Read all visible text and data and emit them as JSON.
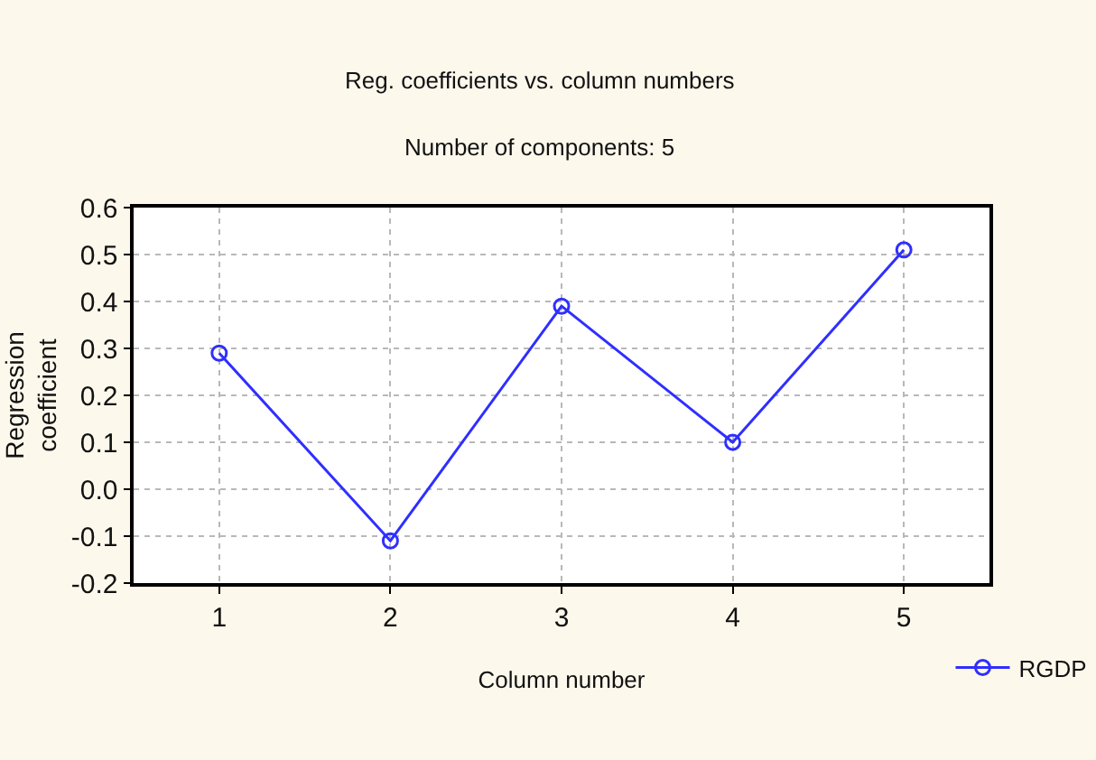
{
  "chart_data": {
    "type": "line",
    "title": "Reg. coefficients vs. column numbers",
    "subtitle": "Number of components: 5",
    "xlabel": "Column number",
    "ylabel": "Regression\ncoefficient",
    "x": [
      1,
      2,
      3,
      4,
      5
    ],
    "series": [
      {
        "name": "RGDP",
        "color": "#2f2fff",
        "values": [
          0.29,
          -0.11,
          0.39,
          0.1,
          0.51
        ]
      }
    ],
    "xlim": [
      0.5,
      5.5
    ],
    "xticks": [
      1,
      2,
      3,
      4,
      5
    ],
    "ylim": [
      -0.2,
      0.6
    ],
    "yticks": [
      -0.2,
      -0.1,
      {
        "value": 0,
        "label": "0.0"
      },
      0.1,
      0.2,
      0.3,
      0.4,
      0.5,
      0.6
    ],
    "grid": true,
    "legend": "bottom right",
    "marker": "circle",
    "line_style": "solid"
  }
}
